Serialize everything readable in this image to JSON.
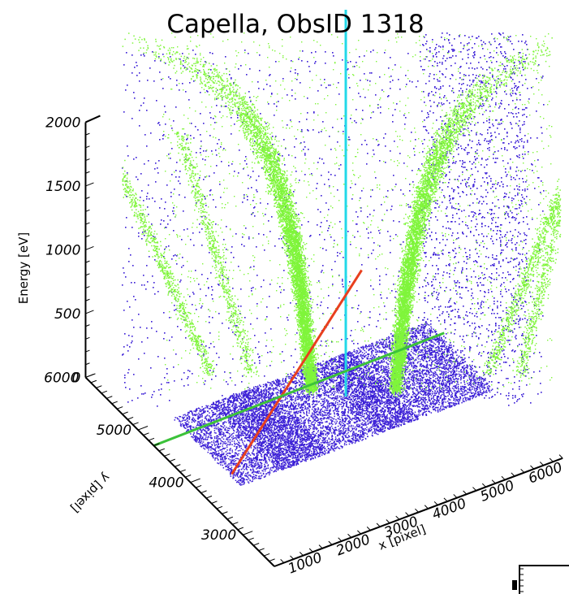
{
  "chart_data": {
    "type": "scatter",
    "title": "Capella, ObsID 1318",
    "xlabel": "x [pixel]",
    "ylabel": "y [pixel]",
    "zlabel": "Energy [eV]",
    "x_ticks": [
      "1000",
      "2000",
      "3000",
      "4000",
      "5000",
      "6000"
    ],
    "y_ticks": [
      "3000",
      "4000",
      "5000",
      "6000"
    ],
    "z_ticks": [
      "0",
      "500",
      "1000",
      "1500",
      "2000"
    ],
    "xlim": [
      500,
      6500
    ],
    "ylim": [
      2400,
      6000
    ],
    "zlim": [
      0,
      2000
    ],
    "grid": false,
    "series": [
      {
        "color": "#3b1fd6",
        "description_points": "events on detector plane and background"
      },
      {
        "color": "#7ff53a",
        "description_points": "dispersed spectral arms"
      },
      {
        "color": "#22d8e8",
        "description_points": "zeroth order column"
      },
      {
        "color": "#e8401e",
        "description_points": "dispersion line"
      },
      {
        "color": "#3cc23a",
        "description_points": "dispersion line"
      }
    ]
  }
}
